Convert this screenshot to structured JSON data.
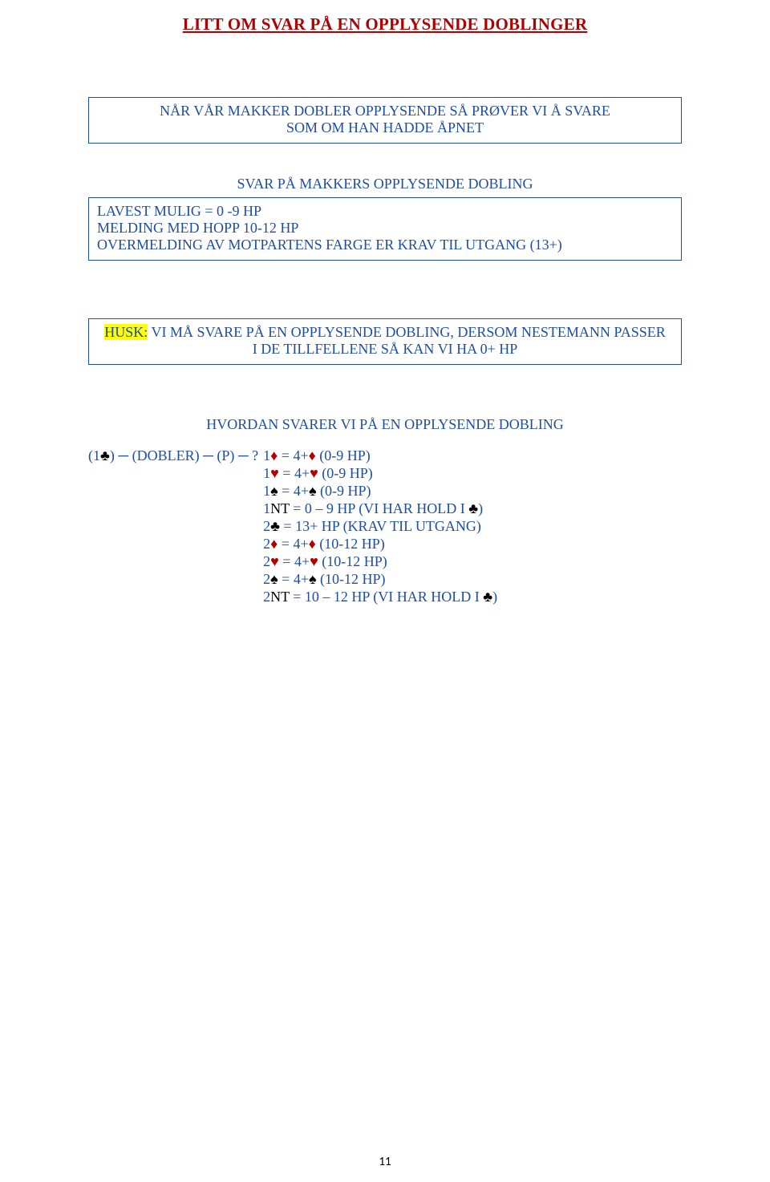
{
  "colors": {
    "title": "#b20000",
    "body": "#1f4ea0",
    "highlight_bg": "#ffff00",
    "border": "#1f4ea0",
    "black": "#000000",
    "red": "#b20000"
  },
  "title": "LITT OM SVAR PÅ EN OPPLYSENDE DOBLINGER",
  "box1": {
    "line1": "NÅR VÅR MAKKER DOBLER OPPLYSENDE SÅ PRØVER VI Å SVARE",
    "line2": "SOM OM HAN HADDE ÅPNET"
  },
  "sub1": "SVAR PÅ MAKKERS OPPLYSENDE DOBLING",
  "box2": {
    "line1": "LAVEST MULIG = 0 -9 HP",
    "line2": "MELDING MED HOPP 10-12 HP",
    "line3": "OVERMELDING AV MOTPARTENS FARGE ER KRAV TIL UTGANG (13+)"
  },
  "box3": {
    "husk": "HUSK:",
    "rest1": " VI MÅ SVARE PÅ EN OPPLYSENDE DOBLING, DERSOM NESTEMANN PASSER",
    "line2": "I DE TILLFELLENE SÅ KAN VI HA 0+ HP"
  },
  "sub2": "HVORDAN SVARER VI PÅ EN OPPLYSENDE DOBLING",
  "sequence": {
    "open": "(1",
    "open_suit": "♣",
    "open_close": ")",
    "dash1": " ─ ",
    "dobler": "(DOBLER)",
    "dash2": " ─ ",
    "pass": "(P)",
    "dash3": " ─    ",
    "q": "?"
  },
  "answers": [
    {
      "bid": "1",
      "bid_suit": "♦",
      "bid_suit_color": "#b20000",
      "eq": " = 4+",
      "eq_suit": "♦",
      "eq_suit_color": "#b20000",
      "tail": " (0-9 HP)"
    },
    {
      "bid": "1",
      "bid_suit": "♥",
      "bid_suit_color": "#b20000",
      "eq": " = 4+",
      "eq_suit": "♥",
      "eq_suit_color": "#b20000",
      "tail": " (0-9 HP)"
    },
    {
      "bid": "1",
      "bid_suit": "♠",
      "bid_suit_color": "#000000",
      "eq": " = 4+",
      "eq_suit": "♠",
      "eq_suit_color": "#000000",
      "tail": " (0-9 HP)"
    },
    {
      "raw_pre": "1",
      "raw_nt": "NT",
      "raw_mid": " = 0 – 9 HP (VI HAR HOLD I ",
      "raw_suit": "♣",
      "raw_suit_color": "#000000",
      "raw_post": ")"
    },
    {
      "bid": "2",
      "bid_suit": "♣",
      "bid_suit_color": "#000000",
      "eq": " = 13+ HP (KRAV TIL UTGANG)",
      "eq_suit": "",
      "eq_suit_color": "",
      "tail": ""
    },
    {
      "bid": "2",
      "bid_suit": "♦",
      "bid_suit_color": "#b20000",
      "eq": " = 4+",
      "eq_suit": "♦",
      "eq_suit_color": "#b20000",
      "tail": " (10-12 HP)"
    },
    {
      "bid": "2",
      "bid_suit": "♥",
      "bid_suit_color": "#b20000",
      "eq": " = 4+",
      "eq_suit": "♥",
      "eq_suit_color": "#b20000",
      "tail": " (10-12 HP)"
    },
    {
      "bid": "2",
      "bid_suit": "♠",
      "bid_suit_color": "#000000",
      "eq": " = 4+",
      "eq_suit": "♠",
      "eq_suit_color": "#000000",
      "tail": " (10-12 HP)"
    },
    {
      "raw_pre": "2",
      "raw_nt": "NT",
      "raw_mid": " = 10 – 12 HP (VI HAR HOLD I ",
      "raw_suit": "♣",
      "raw_suit_color": "#000000",
      "raw_post": ")"
    }
  ],
  "page_number": "11"
}
